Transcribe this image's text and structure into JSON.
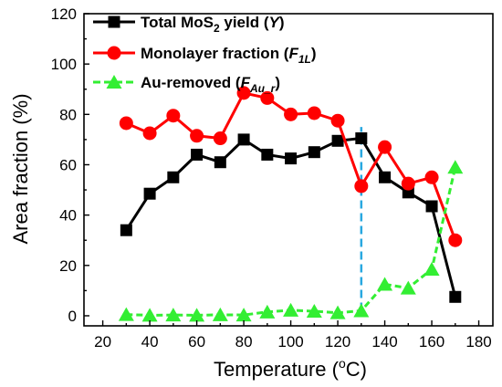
{
  "chart_data": {
    "type": "line",
    "xlabel": "Temperature (",
    "xlabel_sup": "o",
    "xlabel_end": "C)",
    "ylabel": "Area fraction (%)",
    "xlim": [
      12,
      186
    ],
    "ylim": [
      -4,
      120
    ],
    "xticks": [
      20,
      40,
      60,
      80,
      100,
      120,
      140,
      160,
      180
    ],
    "yticks": [
      0,
      20,
      40,
      60,
      80,
      100,
      120
    ],
    "vline": {
      "x": 130,
      "y_range": [
        2,
        75
      ],
      "color": "#29a8e0",
      "style": "dashed"
    },
    "legend_placement": "top-left",
    "series": [
      {
        "name": "Total MoS",
        "name_sub": "2",
        "name_rest": " yield (",
        "name_sym": "Y",
        "name_close": ")",
        "color": "#000000",
        "marker": "square",
        "x": [
          30,
          40,
          50,
          60,
          70,
          80,
          90,
          100,
          110,
          120,
          130,
          140,
          150,
          160,
          170
        ],
        "values": [
          34,
          48.5,
          55,
          64,
          61,
          70,
          64,
          62.5,
          65,
          69.5,
          70.5,
          55,
          49,
          43.5,
          7.5
        ]
      },
      {
        "name": "Monolayer fraction (",
        "name_sym": "F",
        "name_sub": "1L",
        "name_close": ")",
        "color": "#ff0000",
        "marker": "circle",
        "x": [
          30,
          40,
          50,
          60,
          70,
          80,
          90,
          100,
          110,
          120,
          130,
          140,
          150,
          160,
          170
        ],
        "values": [
          76.5,
          72.5,
          79.5,
          71.5,
          70.5,
          88.5,
          86.5,
          80,
          80.5,
          77.5,
          51.5,
          67,
          52.5,
          55,
          30
        ]
      },
      {
        "name": "Au-removed (",
        "name_sym": "F",
        "name_sub": "Au_r",
        "name_close": ")",
        "color": "#33ee33",
        "marker": "triangle",
        "x": [
          30,
          40,
          50,
          60,
          70,
          80,
          90,
          100,
          110,
          120,
          130,
          140,
          150,
          160,
          170
        ],
        "values": [
          0.5,
          0.2,
          0.3,
          0.2,
          0.4,
          0.3,
          1.5,
          2.2,
          1.8,
          1.2,
          2,
          12.5,
          11,
          18.5,
          59
        ]
      }
    ]
  }
}
